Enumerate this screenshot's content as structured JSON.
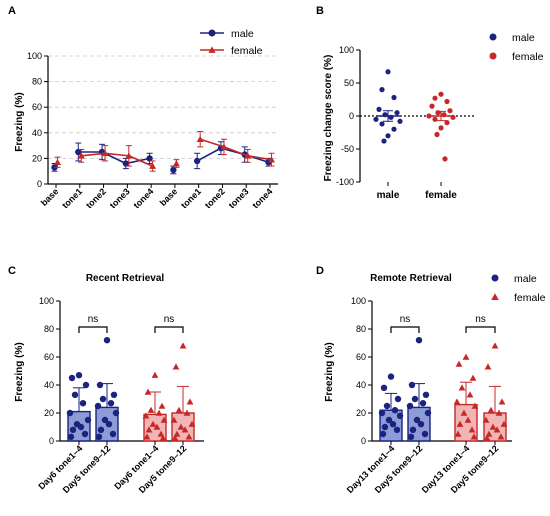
{
  "colors": {
    "male": "#1a237e",
    "female": "#c62828",
    "male_fill": "#8e9bd6",
    "female_fill": "#f2b5b5"
  },
  "chart_data": [
    {
      "panel": "A",
      "type": "line",
      "ylabel": "Freezing (%)",
      "ylim": [
        0,
        100
      ],
      "yticks": [
        "0",
        "20",
        "40",
        "60",
        "80",
        "100"
      ],
      "categories": [
        "base",
        "tone1",
        "tone2",
        "tone3",
        "tone4",
        "base",
        "tone1",
        "tone2",
        "tone3",
        "tone4"
      ],
      "grid": "horizontal dashed",
      "legend": "top-right",
      "series": [
        {
          "name": "male",
          "marker": "circle",
          "values": [
            13,
            25,
            25,
            16,
            20,
            11,
            18,
            28,
            23,
            17
          ],
          "errors": [
            3,
            7,
            6,
            4,
            4,
            3,
            6,
            5,
            6,
            3
          ]
        },
        {
          "name": "female",
          "marker": "triangle",
          "values": [
            17,
            22,
            24,
            22,
            14,
            16,
            35,
            29,
            22,
            19
          ],
          "errors": [
            4,
            5,
            6,
            8,
            4,
            3,
            6,
            6,
            5,
            5
          ]
        }
      ]
    },
    {
      "panel": "B",
      "type": "scatter",
      "ylabel": "Freezing change score (%)",
      "ylim": [
        -100,
        100
      ],
      "yticks": [
        "-100",
        "-50",
        "0",
        "50",
        "100"
      ],
      "categories": [
        "male",
        "female"
      ],
      "legend": "top-right",
      "series": [
        {
          "name": "male",
          "values": [
            67,
            40,
            28,
            10,
            5,
            2,
            -2,
            -5,
            -8,
            -12,
            -20,
            -30,
            -38
          ],
          "mean": 0,
          "sem": 8
        },
        {
          "name": "female",
          "values": [
            33,
            27,
            22,
            15,
            8,
            5,
            2,
            0,
            -2,
            -5,
            -10,
            -18,
            -28,
            -65
          ],
          "mean": 0,
          "sem": 7
        }
      ]
    },
    {
      "panel": "C",
      "type": "bar",
      "title": "Recent Retrieval",
      "ylabel": "Freezing (%)",
      "ylim": [
        0,
        100
      ],
      "yticks": [
        "0",
        "20",
        "40",
        "60",
        "80",
        "100"
      ],
      "categories": [
        "Day6 tone1–4",
        "Day5 tone9–12",
        "Day6 tone1–4",
        "Day5 tone9–12"
      ],
      "legend": "none",
      "bars": [
        {
          "group": "male",
          "value": 21,
          "sd": 17,
          "points": [
            47,
            45,
            40,
            33,
            27,
            20,
            15,
            12,
            10,
            8,
            5,
            3
          ]
        },
        {
          "group": "male",
          "value": 24,
          "sd": 17,
          "points": [
            72,
            40,
            33,
            30,
            27,
            25,
            20,
            15,
            12,
            8,
            5,
            3
          ]
        },
        {
          "group": "female",
          "value": 19,
          "sd": 16,
          "points": [
            47,
            35,
            25,
            22,
            20,
            18,
            15,
            12,
            10,
            8,
            5,
            3,
            2
          ]
        },
        {
          "group": "female",
          "value": 20,
          "sd": 19,
          "points": [
            68,
            53,
            28,
            22,
            20,
            15,
            12,
            10,
            8,
            5,
            3,
            2
          ]
        }
      ],
      "brackets": [
        {
          "from": 0,
          "to": 1,
          "label": "ns"
        },
        {
          "from": 2,
          "to": 3,
          "label": "ns"
        }
      ]
    },
    {
      "panel": "D",
      "type": "bar",
      "title": "Remote Retrieval",
      "ylabel": "Freezing (%)",
      "ylim": [
        0,
        100
      ],
      "yticks": [
        "0",
        "20",
        "40",
        "60",
        "80",
        "100"
      ],
      "categories": [
        "Day13 tone1–4",
        "Day5 tone9–12",
        "Day13 tone1–4",
        "Day5 tone9–12"
      ],
      "legend": "top-right",
      "bars": [
        {
          "group": "male",
          "value": 22,
          "sd": 12,
          "points": [
            46,
            38,
            30,
            25,
            22,
            20,
            18,
            15,
            12,
            10,
            8,
            5
          ]
        },
        {
          "group": "male",
          "value": 24,
          "sd": 17,
          "points": [
            72,
            40,
            33,
            30,
            27,
            25,
            20,
            15,
            12,
            8,
            5,
            3
          ]
        },
        {
          "group": "female",
          "value": 26,
          "sd": 16,
          "points": [
            60,
            55,
            45,
            38,
            33,
            28,
            25,
            20,
            15,
            12,
            8,
            5,
            3
          ]
        },
        {
          "group": "female",
          "value": 20,
          "sd": 19,
          "points": [
            68,
            53,
            28,
            22,
            20,
            15,
            12,
            10,
            8,
            5,
            3,
            2
          ]
        }
      ],
      "brackets": [
        {
          "from": 0,
          "to": 1,
          "label": "ns"
        },
        {
          "from": 2,
          "to": 3,
          "label": "ns"
        }
      ]
    }
  ],
  "legend_labels": {
    "male": "male",
    "female": "female"
  }
}
